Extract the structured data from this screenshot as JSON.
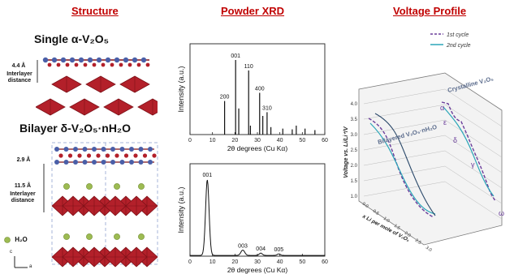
{
  "sections": {
    "structure": "Structure",
    "xrd": "Powder XRD",
    "voltage": "Voltage Profile"
  },
  "structure": {
    "single_title": "Single α-V₂O₅",
    "single_spacing": "4.4 Å",
    "single_spacing_label_1": "Interlayer",
    "single_spacing_label_2": "distance",
    "bilayer_title": "Bilayer δ-V₂O₅·nH₂O",
    "bilayer_spacing_small": "2.9 Å",
    "bilayer_spacing": "11.5 Å",
    "bilayer_spacing_label_1": "Interlayer",
    "bilayer_spacing_label_2": "distance",
    "water_label": "H₂O",
    "axis_c": "c",
    "axis_a": "a"
  },
  "colors": {
    "title_red": "#c00000",
    "octahedra": "#b3202a",
    "octahedra_dark": "#7e1118",
    "oxygen": "#4a5fa8",
    "water": "#9dbb52",
    "line1": "#6a3d9a",
    "line2": "#2aa6b8"
  },
  "chart_data": [
    {
      "type": "line",
      "name": "top-xrd",
      "xlabel": "2θ degrees (Cu Kα)",
      "ylabel": "Intensity (a.u.)",
      "xlim": [
        0,
        60
      ],
      "xticks": [
        0,
        10,
        20,
        30,
        40,
        50,
        60
      ],
      "peaks": [
        {
          "x": 15.4,
          "h": 0.45,
          "label": "200"
        },
        {
          "x": 20.3,
          "h": 1.0,
          "label": "001"
        },
        {
          "x": 21.7,
          "h": 0.35,
          "label": ""
        },
        {
          "x": 26.1,
          "h": 0.86,
          "label": "110"
        },
        {
          "x": 26.9,
          "h": 0.12,
          "label": ""
        },
        {
          "x": 31.0,
          "h": 0.56,
          "label": "400"
        },
        {
          "x": 32.4,
          "h": 0.25,
          "label": ""
        },
        {
          "x": 34.3,
          "h": 0.3,
          "label": "310"
        },
        {
          "x": 36.0,
          "h": 0.1,
          "label": ""
        },
        {
          "x": 41.3,
          "h": 0.08,
          "label": ""
        },
        {
          "x": 45.5,
          "h": 0.07,
          "label": ""
        },
        {
          "x": 47.3,
          "h": 0.12,
          "label": ""
        },
        {
          "x": 51.2,
          "h": 0.08,
          "label": ""
        },
        {
          "x": 55.6,
          "h": 0.06,
          "label": ""
        }
      ]
    },
    {
      "type": "line",
      "name": "bottom-xrd",
      "xlabel": "2θ degrees (Cu Kα)",
      "ylabel": "Intensity (a.u.)",
      "xlim": [
        0,
        60
      ],
      "xticks": [
        0,
        10,
        20,
        30,
        40,
        50,
        60
      ],
      "peaks": [
        {
          "x": 7.7,
          "h": 1.0,
          "w": 1.1,
          "label": "001"
        },
        {
          "x": 23.5,
          "h": 0.07,
          "w": 1.2,
          "label": "003"
        },
        {
          "x": 31.5,
          "h": 0.03,
          "w": 1.0,
          "label": "004"
        },
        {
          "x": 39.5,
          "h": 0.02,
          "w": 1.0,
          "label": "005"
        }
      ]
    },
    {
      "type": "line",
      "name": "voltage-profile",
      "ylabel": "Voltage vs. Li/Li⁺/V",
      "xlabel": "x Li per mole of V₂O₅",
      "yticks": [
        "4.0",
        "3.5",
        "3.0",
        "2.5",
        "2.0",
        "1.5",
        "1.0"
      ],
      "xticks": [
        "0.0",
        "0.5",
        "1.0",
        "1.5",
        "2.0",
        "2.5",
        "3.0"
      ],
      "series": [
        {
          "name": "1st cycle"
        },
        {
          "name": "2nd cycle"
        }
      ],
      "annotations": [
        "Bilayered V₂O₅·nH₂O",
        "Crystalline V₂O₅",
        "α",
        "ε",
        "δ",
        "γ",
        "ω"
      ]
    }
  ]
}
